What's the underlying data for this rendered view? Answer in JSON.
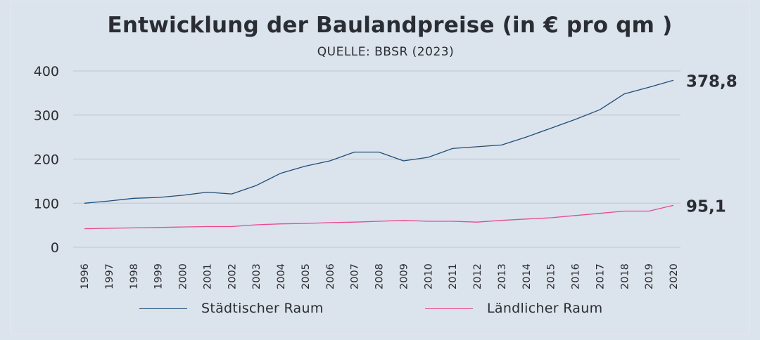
{
  "chart_data": {
    "type": "line",
    "title": "Entwicklung der Baulandpreise (in € pro qm )",
    "subtitle": "QUELLE: BBSR (2023)",
    "xlabel": "",
    "ylabel": "",
    "ylim": [
      0,
      400
    ],
    "yticks": [
      "0",
      "100",
      "200",
      "300",
      "400"
    ],
    "ytick_values": [
      0,
      100,
      200,
      300,
      400
    ],
    "grid": true,
    "legend_position": "bottom",
    "categories": [
      "1996",
      "1997",
      "1998",
      "1999",
      "2000",
      "2001",
      "2002",
      "2003",
      "2004",
      "2005",
      "2006",
      "2007",
      "2008",
      "2009",
      "2010",
      "2011",
      "2012",
      "2013",
      "2014",
      "2015",
      "2016",
      "2017",
      "2018",
      "2019",
      "2020"
    ],
    "series": [
      {
        "name": "Städtischer Raum",
        "color": "#1f4e79",
        "values": [
          100,
          105,
          111,
          113,
          118,
          125,
          121,
          140,
          168,
          184,
          196,
          216,
          216,
          196,
          204,
          224,
          228,
          232,
          250,
          270,
          290,
          312,
          348,
          363,
          378.8
        ],
        "end_label": "378,8"
      },
      {
        "name": "Ländlicher Raum",
        "color": "#e8489a",
        "values": [
          42,
          43,
          44,
          45,
          46,
          47,
          47,
          51,
          53,
          54,
          56,
          57,
          59,
          61,
          59,
          59,
          57,
          61,
          64,
          67,
          72,
          77,
          82,
          82,
          95.1
        ],
        "end_label": "95,1"
      }
    ]
  }
}
